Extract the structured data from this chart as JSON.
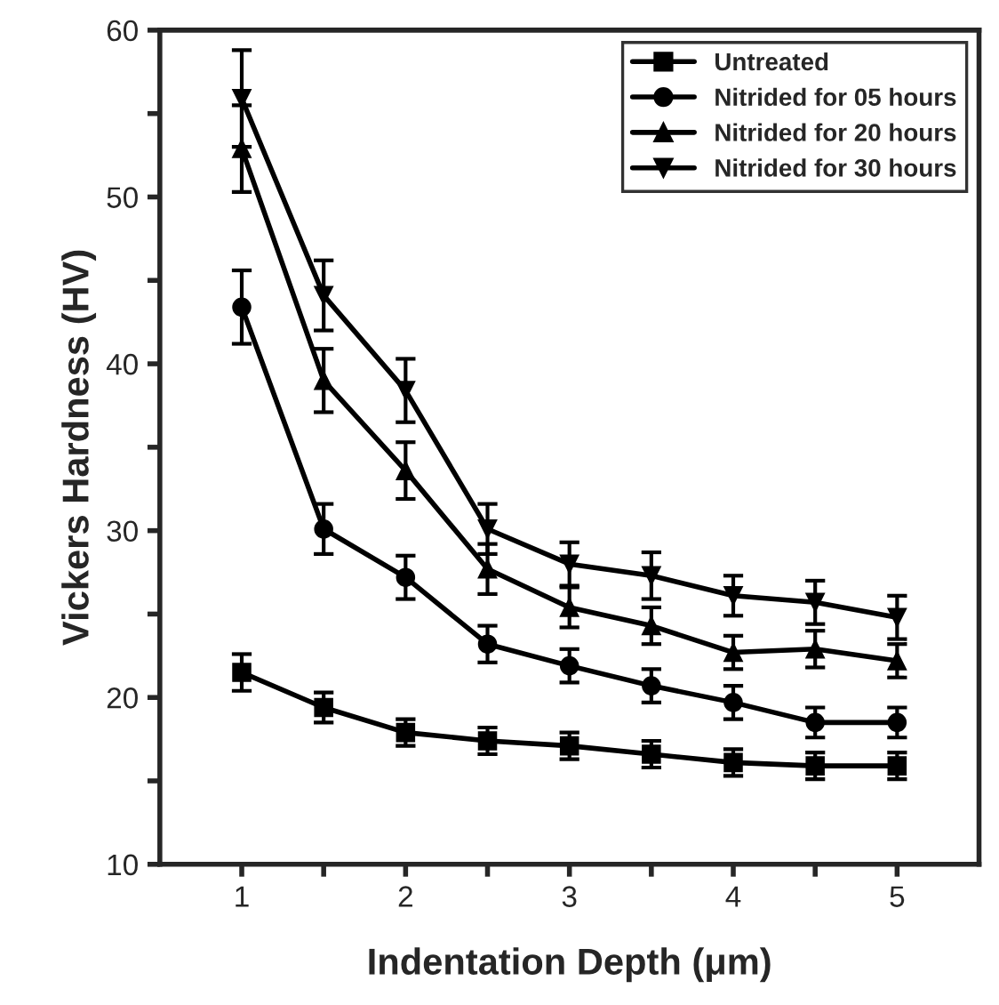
{
  "chart_data": {
    "type": "line",
    "xlabel": "Indentation Depth (μm)",
    "ylabel": "Vickers Hardness (HV)",
    "x": [
      1,
      1.5,
      2,
      2.5,
      3,
      3.5,
      4,
      4.5,
      5
    ],
    "xlim": [
      0.5,
      5.5
    ],
    "xticks": [
      1,
      {
        "value": 1.5,
        "label": null
      },
      2,
      {
        "value": 2.5,
        "label": null
      },
      3,
      {
        "value": 3.5,
        "label": null
      },
      4,
      {
        "value": 4.5,
        "label": null
      },
      5
    ],
    "ylim": [
      10,
      60
    ],
    "yticks": [
      10,
      {
        "value": 15,
        "label": null
      },
      20,
      {
        "value": 25,
        "label": null
      },
      30,
      {
        "value": 35,
        "label": null
      },
      40,
      {
        "value": 45,
        "label": null
      },
      50,
      {
        "value": 55,
        "label": null
      },
      60
    ],
    "grid": false,
    "legend": "top right",
    "line_style": "solid",
    "series": [
      {
        "name": "Untreated",
        "color": "#000000",
        "marker": "square",
        "values": [
          21.5,
          19.4,
          17.9,
          17.4,
          17.1,
          16.6,
          16.1,
          15.9,
          15.9
        ],
        "errors": [
          1.1,
          0.9,
          0.8,
          0.8,
          0.8,
          0.8,
          0.8,
          0.8,
          0.8
        ]
      },
      {
        "name": "Nitrided for 05 hours",
        "color": "#000000",
        "marker": "circle",
        "values": [
          43.4,
          30.1,
          27.2,
          23.2,
          21.9,
          20.7,
          19.7,
          18.5,
          18.5
        ],
        "errors": [
          2.2,
          1.5,
          1.3,
          1.1,
          1.0,
          1.0,
          1.0,
          0.9,
          0.9
        ]
      },
      {
        "name": "Nitrided for 20 hours",
        "color": "#000000",
        "marker": "triangle",
        "values": [
          52.9,
          39.0,
          33.6,
          27.7,
          25.4,
          24.3,
          22.7,
          22.9,
          22.2
        ],
        "errors": [
          2.6,
          1.9,
          1.7,
          1.5,
          1.2,
          1.1,
          1.0,
          1.1,
          1.0
        ]
      },
      {
        "name": "Nitrided for 30 hours",
        "color": "#000000",
        "marker": "triangle_down",
        "values": [
          55.9,
          44.1,
          38.4,
          30.1,
          28.0,
          27.3,
          26.1,
          25.7,
          24.8
        ],
        "errors": [
          2.9,
          2.1,
          1.9,
          1.5,
          1.3,
          1.4,
          1.2,
          1.3,
          1.3
        ]
      }
    ]
  }
}
